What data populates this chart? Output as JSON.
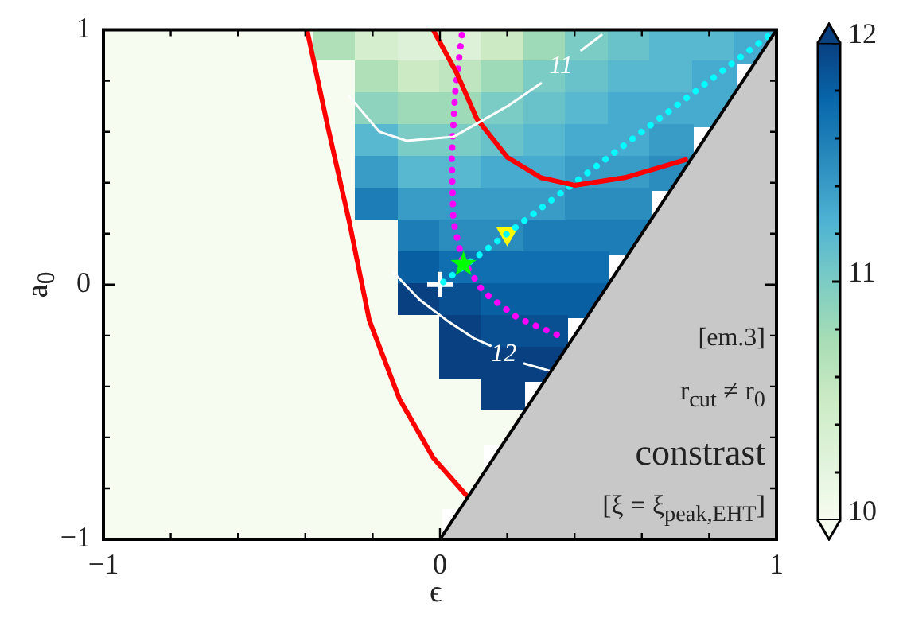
{
  "chart_data": {
    "type": "heatmap",
    "xlabel": "ϵ",
    "ylabel": "a$_{0}$",
    "cells": [
      [
        10,
        10,
        10,
        10,
        10,
        10.7,
        10.4,
        10.3,
        10.3,
        10.5,
        10.8,
        11,
        11.1,
        11.2,
        11.2,
        11.3
      ],
      [
        10,
        10,
        10,
        10,
        10,
        10,
        10.7,
        10.5,
        10.6,
        10.8,
        11,
        11.1,
        11.2,
        11.2,
        11.3,
        null
      ],
      [
        10,
        10,
        10,
        10,
        10,
        10,
        10.9,
        10.8,
        10.8,
        11,
        11.1,
        11.2,
        11.3,
        11.3,
        11.3,
        null
      ],
      [
        10,
        10,
        10,
        10,
        10,
        10,
        11.2,
        11,
        11,
        11.1,
        11.2,
        11.3,
        11.3,
        11.4,
        null,
        null
      ],
      [
        10,
        10,
        10,
        10,
        10,
        10,
        11.4,
        11.2,
        11.2,
        11.3,
        11.3,
        11.4,
        11.4,
        11.5,
        null,
        null
      ],
      [
        10,
        10,
        10,
        10,
        10,
        10,
        11.6,
        11.4,
        11.4,
        11.4,
        11.4,
        11.5,
        11.5,
        null,
        null,
        null
      ],
      [
        10,
        10,
        10,
        10,
        10,
        10,
        10,
        11.6,
        11.5,
        11.5,
        11.6,
        11.6,
        11.6,
        null,
        null,
        null
      ],
      [
        10,
        10,
        10,
        10,
        10,
        10,
        10,
        11.8,
        11.7,
        11.7,
        11.7,
        11.7,
        null,
        null,
        null,
        null
      ],
      [
        10,
        10,
        10,
        10,
        10,
        10,
        10,
        12,
        11.9,
        11.8,
        11.8,
        11.8,
        null,
        null,
        null,
        null
      ],
      [
        10,
        10,
        10,
        10,
        10,
        10,
        10,
        10,
        12,
        11.9,
        11.9,
        null,
        null,
        null,
        null,
        null
      ],
      [
        10,
        10,
        10,
        10,
        10,
        10,
        10,
        10,
        12.1,
        12,
        12,
        null,
        null,
        null,
        null,
        null
      ],
      [
        10,
        10,
        10,
        10,
        10,
        10,
        10,
        10,
        10,
        12.2,
        null,
        null,
        null,
        null,
        null,
        null
      ],
      [
        10,
        10,
        10,
        10,
        10,
        10,
        10,
        10,
        10,
        10,
        null,
        null,
        null,
        null,
        null,
        null
      ],
      [
        10,
        10,
        10,
        10,
        10,
        10,
        10,
        10,
        10,
        null,
        null,
        null,
        null,
        null,
        null,
        null
      ],
      [
        10,
        10,
        10,
        10,
        10,
        10,
        10,
        10,
        10,
        null,
        null,
        null,
        null,
        null,
        null,
        null
      ],
      [
        10,
        10,
        10,
        10,
        10,
        10,
        10,
        10,
        null,
        null,
        null,
        null,
        null,
        null,
        null,
        null
      ]
    ],
    "clim": [
      10,
      12
    ],
    "cticks": [
      10,
      {
        "value": 10.2,
        "label": null
      },
      {
        "value": 10.4,
        "label": null
      },
      {
        "value": 10.6,
        "label": null
      },
      {
        "value": 10.8,
        "label": null
      },
      11,
      {
        "value": 11.2,
        "label": null
      },
      {
        "value": 11.4,
        "label": null
      },
      {
        "value": 11.6,
        "label": null
      },
      {
        "value": 11.8,
        "label": null
      },
      12
    ],
    "xlim": [
      -1,
      1
    ],
    "ylim": [
      -1,
      1
    ],
    "xticks": [
      {
        "value": -1,
        "label": "−1"
      },
      {
        "value": -0.8,
        "label": null
      },
      {
        "value": -0.6,
        "label": null
      },
      {
        "value": -0.4,
        "label": null
      },
      {
        "value": -0.2,
        "label": null
      },
      0,
      {
        "value": 0.2,
        "label": null
      },
      {
        "value": 0.4,
        "label": null
      },
      {
        "value": 0.6,
        "label": null
      },
      {
        "value": 0.8,
        "label": null
      },
      1
    ],
    "yticks": [
      {
        "value": -1,
        "label": "−1"
      },
      {
        "value": -0.8,
        "label": null
      },
      {
        "value": -0.6,
        "label": null
      },
      {
        "value": -0.4,
        "label": null
      },
      {
        "value": -0.2,
        "label": null
      },
      0,
      {
        "value": 0.2,
        "label": null
      },
      {
        "value": 0.4,
        "label": null
      },
      {
        "value": 0.6,
        "label": null
      },
      {
        "value": 0.8,
        "label": null
      },
      1
    ],
    "series": [
      {
        "type": "area",
        "color": "#c8c8c8",
        "x": [
          0,
          1
        ],
        "values": [
          -1,
          1
        ]
      },
      {
        "type": "line",
        "name": "11",
        "color": "#ffffff",
        "x": [
          -0.27,
          -0.18,
          -0.1,
          0.04,
          0.2,
          0.3,
          0.36,
          0.42,
          0.48
        ],
        "values": [
          0.74,
          0.6,
          0.565,
          0.58,
          0.7,
          0.79,
          null,
          0.92,
          0.98
        ]
      },
      {
        "type": "line",
        "name": "12",
        "color": "#ffffff",
        "x": [
          -0.14,
          -0.06,
          0.02,
          0.1,
          0.15,
          0.19,
          0.25,
          0.33
        ],
        "values": [
          0.05,
          -0.06,
          -0.14,
          -0.21,
          -0.24,
          null,
          -0.31,
          -0.34
        ]
      },
      {
        "type": "line",
        "color": "#ff0000",
        "x": [
          -0.395,
          -0.33,
          -0.27,
          -0.21,
          -0.12,
          -0.02,
          0.08
        ],
        "values": [
          1,
          0.6,
          0.25,
          -0.14,
          -0.45,
          -0.68,
          -0.83
        ]
      },
      {
        "type": "line",
        "color": "#ff0000",
        "x": [
          -0.02,
          0.05,
          0.11,
          0.2,
          0.3,
          0.4,
          0.55,
          0.73
        ],
        "values": [
          1,
          0.83,
          0.65,
          0.5,
          0.42,
          0.39,
          0.42,
          0.49
        ]
      },
      {
        "type": "line",
        "color": "#ff00ff",
        "line_style": "dotted",
        "x": [
          0.065,
          0.045,
          0.035,
          0.04,
          0.065,
          0.13,
          0.23,
          0.37
        ],
        "values": [
          0.98,
          0.75,
          0.5,
          0.25,
          0.1,
          -0.03,
          -0.13,
          -0.21
        ]
      },
      {
        "type": "line",
        "color": "#00ffff",
        "line_style": "dotted",
        "x": [
          0.01,
          1
        ],
        "values": [
          0.01,
          1
        ]
      },
      {
        "type": "scatter",
        "marker": "cross",
        "color": "#ffffff",
        "x": [
          0
        ],
        "values": [
          0
        ]
      },
      {
        "type": "scatter",
        "marker": "star",
        "color": "#00ff00",
        "x": [
          0.07
        ],
        "values": [
          0.08
        ]
      },
      {
        "type": "scatter",
        "marker": "triangle",
        "color": "#ffff00",
        "x": [
          0.2
        ],
        "values": [
          0.2
        ]
      }
    ],
    "annotations": [
      "[em.3]",
      "r$_{cut}$ ≠ r$_{0}$",
      "constrast",
      "[ξ = ξ$_{peak,EHT}$]"
    ]
  }
}
